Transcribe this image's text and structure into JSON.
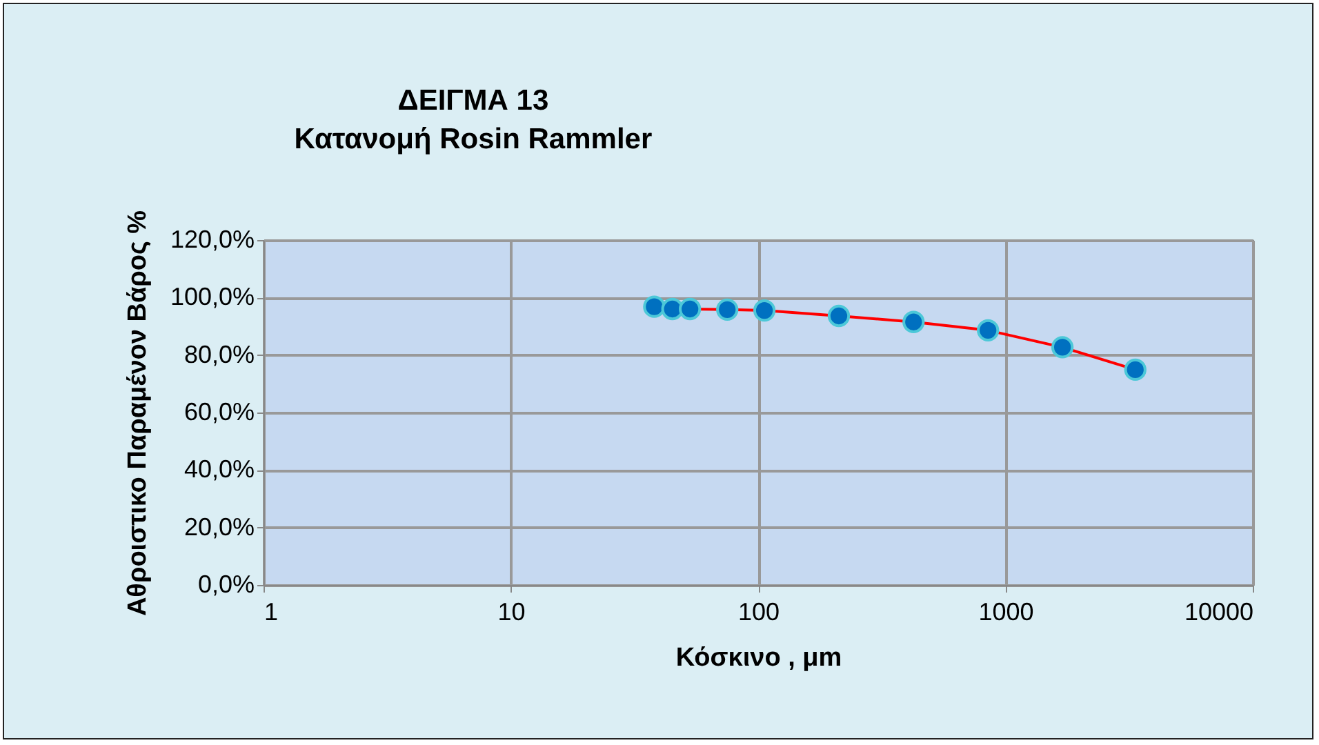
{
  "chart_data": {
    "type": "line",
    "title": "ΔΕΙΓΜΑ 13\nΚατανομή Rosin Rammler",
    "xlabel": "Κόσκινο , μm",
    "ylabel": "Αθροιστικο Παραμένον  Βάρος %",
    "x": [
      38,
      45,
      53,
      75,
      106,
      212,
      425,
      850,
      1700,
      3350
    ],
    "series": [
      {
        "color": "#ff0000",
        "values": [
          96.8,
          96.0,
          96.0,
          95.8,
          95.5,
          93.6,
          91.5,
          88.6,
          82.7,
          74.9
        ]
      }
    ],
    "marker": "circle",
    "log": "x",
    "grid": true,
    "xlim": [
      1,
      10000
    ],
    "xticks": [
      1,
      10,
      100,
      1000,
      10000
    ],
    "ylim": [
      0,
      120
    ],
    "yticks": [
      {
        "value": 0,
        "label": "0,0%"
      },
      {
        "value": 20,
        "label": "20,0%"
      },
      {
        "value": 40,
        "label": "40,0%"
      },
      {
        "value": 60,
        "label": "60,0%"
      },
      {
        "value": 80,
        "label": "80,0%"
      },
      {
        "value": 100,
        "label": "100,0%"
      },
      {
        "value": 120,
        "label": "120,0%"
      }
    ]
  }
}
